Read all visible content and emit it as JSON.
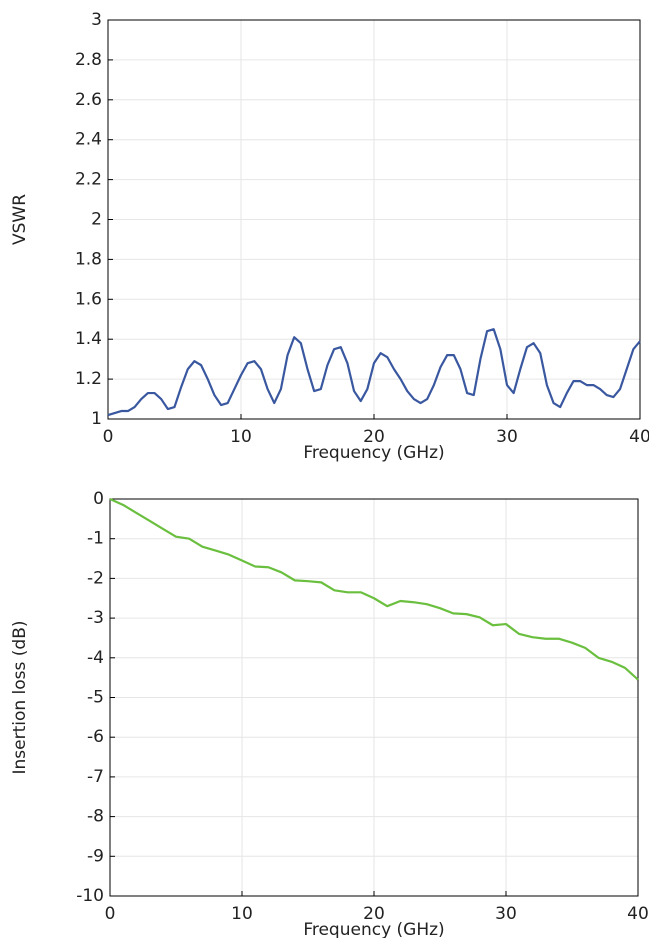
{
  "chart_data": [
    {
      "type": "line",
      "ylabel": "VSWR",
      "xlabel": "Frequency (GHz)",
      "x": [
        0,
        0.5,
        1,
        1.5,
        2,
        2.5,
        3,
        3.5,
        4,
        4.5,
        5,
        5.5,
        6,
        6.5,
        7,
        7.5,
        8,
        8.5,
        9,
        9.5,
        10,
        10.5,
        11,
        11.5,
        12,
        12.5,
        13,
        13.5,
        14,
        14.5,
        15,
        15.5,
        16,
        16.5,
        17,
        17.5,
        18,
        18.5,
        19,
        19.5,
        20,
        20.5,
        21,
        21.5,
        22,
        22.5,
        23,
        23.5,
        24,
        24.5,
        25,
        25.5,
        26,
        26.5,
        27,
        27.5,
        28,
        28.5,
        29,
        29.5,
        30,
        30.5,
        31,
        31.5,
        32,
        32.5,
        33,
        33.5,
        34,
        34.5,
        35,
        35.5,
        36,
        36.5,
        37,
        37.5,
        38,
        38.5,
        39,
        39.5,
        40
      ],
      "series": [
        {
          "color": "#3a58a0",
          "values": [
            1.02,
            1.03,
            1.04,
            1.04,
            1.06,
            1.1,
            1.13,
            1.13,
            1.1,
            1.05,
            1.06,
            1.16,
            1.25,
            1.29,
            1.27,
            1.2,
            1.12,
            1.07,
            1.08,
            1.15,
            1.22,
            1.28,
            1.29,
            1.25,
            1.15,
            1.08,
            1.15,
            1.32,
            1.41,
            1.38,
            1.25,
            1.14,
            1.15,
            1.27,
            1.35,
            1.36,
            1.28,
            1.14,
            1.09,
            1.15,
            1.28,
            1.33,
            1.31,
            1.25,
            1.2,
            1.14,
            1.1,
            1.08,
            1.1,
            1.17,
            1.26,
            1.32,
            1.32,
            1.25,
            1.13,
            1.12,
            1.3,
            1.44,
            1.45,
            1.35,
            1.17,
            1.13,
            1.25,
            1.36,
            1.38,
            1.33,
            1.17,
            1.08,
            1.06,
            1.13,
            1.19,
            1.19,
            1.17,
            1.17,
            1.15,
            1.12,
            1.11,
            1.15,
            1.25,
            1.35,
            1.39
          ]
        }
      ],
      "xlim": [
        0,
        40
      ],
      "xticks": [
        0,
        10,
        20,
        30,
        40
      ],
      "ylim": [
        1,
        3
      ],
      "yticks": [
        1,
        1.2,
        1.4,
        1.6,
        1.8,
        2,
        2.2,
        2.4,
        2.6,
        2.8,
        3
      ],
      "grid": true
    },
    {
      "type": "line",
      "ylabel": "Insertion loss (dB)",
      "xlabel": "Frequency (GHz)",
      "x": [
        0,
        1,
        2,
        3,
        4,
        5,
        6,
        7,
        8,
        9,
        10,
        11,
        12,
        13,
        14,
        15,
        16,
        17,
        18,
        19,
        20,
        21,
        22,
        23,
        24,
        25,
        26,
        27,
        28,
        29,
        30,
        31,
        32,
        33,
        34,
        35,
        36,
        37,
        38,
        39,
        40
      ],
      "series": [
        {
          "color": "#6abf3f",
          "values": [
            0,
            -0.15,
            -0.35,
            -0.55,
            -0.75,
            -0.95,
            -1.0,
            -1.2,
            -1.3,
            -1.4,
            -1.55,
            -1.7,
            -1.72,
            -1.85,
            -2.05,
            -2.07,
            -2.1,
            -2.3,
            -2.35,
            -2.35,
            -2.5,
            -2.7,
            -2.57,
            -2.6,
            -2.65,
            -2.75,
            -2.88,
            -2.9,
            -2.98,
            -3.18,
            -3.15,
            -3.4,
            -3.48,
            -3.52,
            -3.52,
            -3.62,
            -3.75,
            -4.0,
            -4.1,
            -4.25,
            -4.55
          ]
        }
      ],
      "xlim": [
        0,
        40
      ],
      "xticks": [
        0,
        10,
        20,
        30,
        40
      ],
      "ylim": [
        -10,
        0
      ],
      "yticks": [
        -10,
        -9,
        -8,
        -7,
        -6,
        -5,
        -4,
        -3,
        -2,
        -1,
        0
      ],
      "grid": true
    }
  ]
}
